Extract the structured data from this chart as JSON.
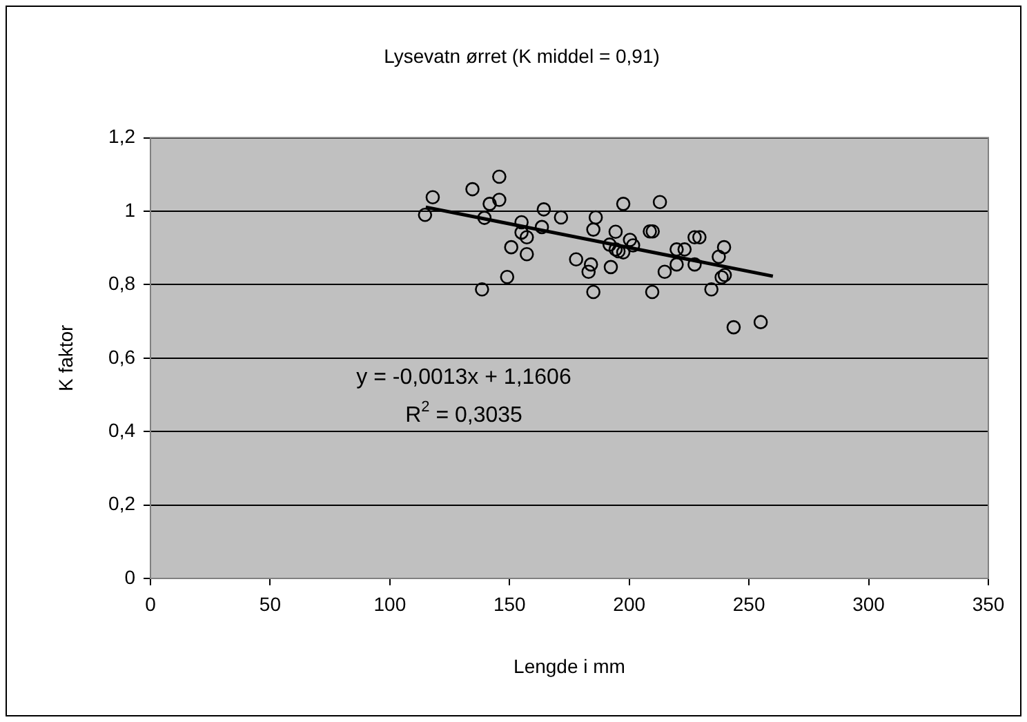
{
  "chart_data": {
    "type": "scatter",
    "title": "Lysevatn ørret (K middel = 0,91)",
    "xlabel": "Lengde i mm",
    "ylabel": "K faktor",
    "annotations": [
      "y = -0,0013x + 1,1606",
      "R$^{2}$ = 0,3035"
    ],
    "xlim": [
      0,
      350
    ],
    "xticks": [
      0,
      50,
      100,
      150,
      200,
      250,
      300,
      350
    ],
    "ylim": [
      0,
      1.2
    ],
    "yticks": [
      0,
      {
        "value": 0.2,
        "label": "0,2"
      },
      {
        "value": 0.4,
        "label": "0,4"
      },
      {
        "value": 0.6,
        "label": "0,6"
      },
      {
        "value": 0.8,
        "label": "0,8"
      },
      1,
      {
        "value": 1.2,
        "label": "1,2"
      }
    ],
    "grid": "y",
    "legend": false,
    "marker": "circle",
    "series": [
      {
        "color": "#000000",
        "x": [
          114.7,
          117.9,
          134.5,
          145.7,
          145.7,
          141.7,
          139.5,
          138.5,
          149,
          150.7,
          155,
          155,
          157.2,
          157.2,
          163.5,
          164.3,
          171.5,
          177.8,
          183,
          184,
          185,
          186,
          185,
          192.3,
          191.8,
          194.3,
          194.3,
          195.5,
          197.5,
          197.5,
          200.3,
          201.6,
          208.6,
          209.8,
          209.6,
          212.8,
          214.8,
          219.8,
          219.8,
          223.1,
          227.3,
          229.3,
          227.3,
          234.3,
          237.4,
          239.6,
          238.6,
          239.9,
          243.6,
          254.9
        ],
        "values": [
          0.99,
          1.038,
          1.06,
          1.094,
          1.031,
          1.02,
          0.982,
          0.787,
          0.821,
          0.902,
          0.97,
          0.942,
          0.929,
          0.883,
          0.957,
          1.005,
          0.983,
          0.869,
          0.835,
          0.855,
          0.95,
          0.983,
          0.78,
          0.848,
          0.909,
          0.944,
          0.896,
          0.891,
          1.02,
          0.888,
          0.922,
          0.907,
          0.945,
          0.945,
          0.78,
          1.025,
          0.835,
          0.896,
          0.855,
          0.896,
          0.929,
          0.929,
          0.855,
          0.787,
          0.876,
          0.902,
          0.82,
          0.826,
          0.684,
          0.698
        ]
      },
      {
        "type": "line",
        "marker": "none",
        "color": "#000000",
        "x": [
          115,
          260
        ],
        "values": [
          1.011,
          0.823
        ]
      }
    ]
  }
}
